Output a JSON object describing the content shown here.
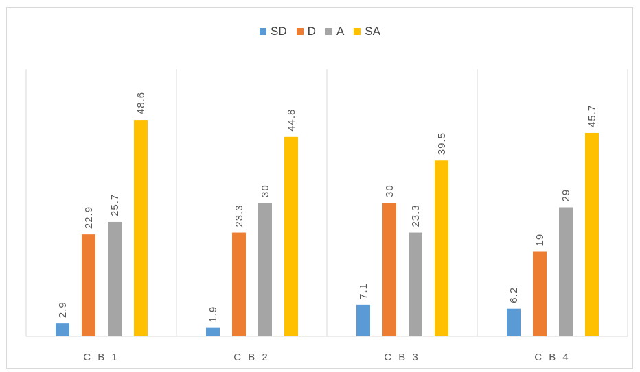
{
  "chart_data": {
    "type": "bar",
    "categories": [
      "CB1",
      "CB2",
      "CB3",
      "CB4"
    ],
    "series": [
      {
        "name": "SD",
        "color": "#5b9bd5",
        "values": [
          2.9,
          1.9,
          7.1,
          6.2
        ]
      },
      {
        "name": "D",
        "color": "#ed7d31",
        "values": [
          22.9,
          23.3,
          30,
          19
        ]
      },
      {
        "name": "A",
        "color": "#a5a5a5",
        "values": [
          25.7,
          30,
          23.3,
          29
        ]
      },
      {
        "name": "SA",
        "color": "#ffc000",
        "values": [
          48.6,
          44.8,
          39.5,
          45.7
        ]
      }
    ],
    "data_labels": [
      [
        "2.9",
        "22.9",
        "25.7",
        "48.6"
      ],
      [
        "1.9",
        "23.3",
        "30",
        "44.8"
      ],
      [
        "7.1",
        "30",
        "23.3",
        "39.5"
      ],
      [
        "6.2",
        "19",
        "29",
        "45.7"
      ]
    ],
    "category_labels": [
      "C B 1",
      "C B 2",
      "C B 3",
      "C B 4"
    ],
    "legend_position": "top",
    "grid": false,
    "ylim": [
      0,
      55
    ]
  }
}
